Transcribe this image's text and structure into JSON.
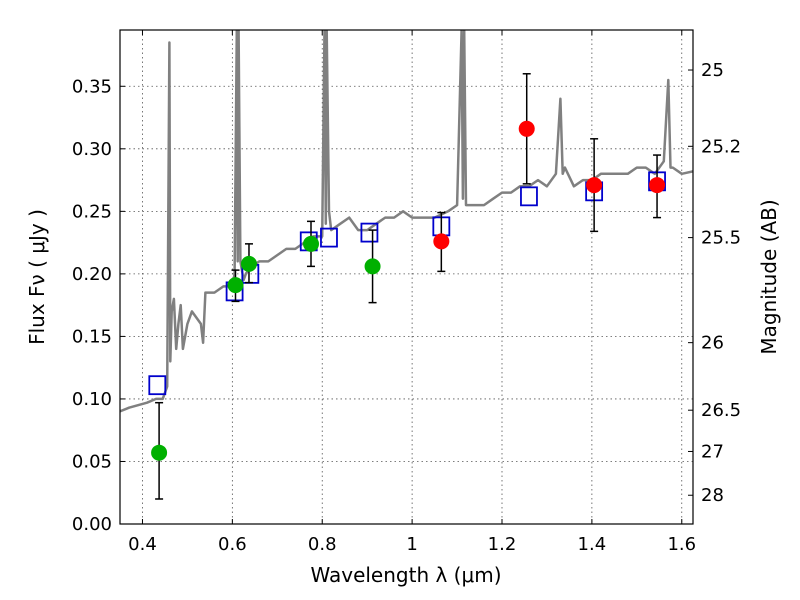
{
  "chart_data": {
    "type": "scatter",
    "xlabel": "Wavelength  λ (μm)",
    "ylabel": "Flux  Fν  ( μJy )",
    "y2label": "Magnitude (AB)",
    "xlim": [
      0.35,
      1.625
    ],
    "ylim": [
      0.0,
      0.395
    ],
    "x_ticks": [
      0.4,
      0.6,
      0.8,
      1.0,
      1.2,
      1.4,
      1.6
    ],
    "x_tick_labels": [
      "0.4",
      "0.6",
      "0.8",
      "1",
      "1.2",
      "1.4",
      "1.6"
    ],
    "y_ticks": [
      0.0,
      0.05,
      0.1,
      0.15,
      0.2,
      0.25,
      0.3,
      0.35
    ],
    "y_tick_labels": [
      "0.00",
      "0.05",
      "0.10",
      "0.15",
      "0.20",
      "0.25",
      "0.30",
      "0.35"
    ],
    "y2_ticks": [
      {
        "label": "25",
        "flux": 0.363
      },
      {
        "label": "25.2",
        "flux": 0.302
      },
      {
        "label": "25.5",
        "flux": 0.229
      },
      {
        "label": "26",
        "flux": 0.145
      },
      {
        "label": "26.5",
        "flux": 0.091
      },
      {
        "label": "27",
        "flux": 0.058
      },
      {
        "label": "28",
        "flux": 0.023
      }
    ],
    "grid": true,
    "colors": {
      "model": "#808080",
      "observed_green": "#00b000",
      "observed_red": "#ff0000",
      "errorbar": "#000000",
      "model_box": "#0000cc"
    },
    "series": [
      {
        "kind": "model-spectrum",
        "x": [
          0.35,
          0.37,
          0.39,
          0.41,
          0.43,
          0.445,
          0.455,
          0.46,
          0.462,
          0.465,
          0.47,
          0.475,
          0.48,
          0.485,
          0.49,
          0.5,
          0.51,
          0.52,
          0.53,
          0.535,
          0.54,
          0.56,
          0.58,
          0.6,
          0.605,
          0.61,
          0.612,
          0.614,
          0.618,
          0.625,
          0.63,
          0.64,
          0.66,
          0.68,
          0.7,
          0.72,
          0.74,
          0.76,
          0.78,
          0.8,
          0.805,
          0.808,
          0.81,
          0.815,
          0.82,
          0.84,
          0.86,
          0.88,
          0.9,
          0.92,
          0.94,
          0.96,
          0.98,
          1.0,
          1.02,
          1.05,
          1.08,
          1.1,
          1.11,
          1.113,
          1.116,
          1.12,
          1.14,
          1.16,
          1.18,
          1.2,
          1.22,
          1.24,
          1.26,
          1.28,
          1.3,
          1.32,
          1.33,
          1.335,
          1.34,
          1.36,
          1.38,
          1.4,
          1.42,
          1.44,
          1.46,
          1.48,
          1.5,
          1.52,
          1.54,
          1.56,
          1.57,
          1.575,
          1.58,
          1.6,
          1.625
        ],
        "y": [
          0.09,
          0.093,
          0.095,
          0.097,
          0.1,
          0.1,
          0.11,
          0.385,
          0.13,
          0.17,
          0.18,
          0.14,
          0.16,
          0.175,
          0.14,
          0.16,
          0.17,
          0.165,
          0.16,
          0.145,
          0.185,
          0.185,
          0.19,
          0.19,
          0.2,
          0.395,
          0.21,
          0.395,
          0.21,
          0.195,
          0.2,
          0.205,
          0.21,
          0.21,
          0.215,
          0.22,
          0.22,
          0.225,
          0.23,
          0.23,
          0.395,
          0.24,
          0.395,
          0.25,
          0.235,
          0.24,
          0.245,
          0.235,
          0.235,
          0.24,
          0.245,
          0.245,
          0.25,
          0.245,
          0.245,
          0.245,
          0.25,
          0.255,
          0.395,
          0.26,
          0.395,
          0.255,
          0.255,
          0.255,
          0.26,
          0.265,
          0.265,
          0.27,
          0.27,
          0.275,
          0.27,
          0.28,
          0.34,
          0.28,
          0.285,
          0.27,
          0.275,
          0.275,
          0.28,
          0.28,
          0.28,
          0.28,
          0.285,
          0.285,
          0.28,
          0.29,
          0.355,
          0.285,
          0.285,
          0.28,
          0.282
        ]
      },
      {
        "kind": "observed-green",
        "x": [
          0.437,
          0.607,
          0.637,
          0.775,
          0.912
        ],
        "y": [
          0.057,
          0.191,
          0.208,
          0.224,
          0.206
        ],
        "err_low": [
          0.02,
          0.178,
          0.193,
          0.206,
          0.177
        ],
        "err_high": [
          0.097,
          0.203,
          0.224,
          0.242,
          0.235
        ]
      },
      {
        "kind": "observed-red",
        "x": [
          1.065,
          1.255,
          1.405,
          1.545
        ],
        "y": [
          0.226,
          0.316,
          0.271,
          0.271
        ],
        "err_low": [
          0.202,
          0.272,
          0.234,
          0.245
        ],
        "err_high": [
          0.249,
          0.36,
          0.308,
          0.295
        ]
      },
      {
        "kind": "model-photometry",
        "x": [
          0.433,
          0.605,
          0.64,
          0.77,
          0.815,
          0.905,
          1.065,
          1.26,
          1.405,
          1.545
        ],
        "y": [
          0.111,
          0.186,
          0.2,
          0.226,
          0.229,
          0.233,
          0.238,
          0.262,
          0.266,
          0.274
        ]
      }
    ]
  }
}
